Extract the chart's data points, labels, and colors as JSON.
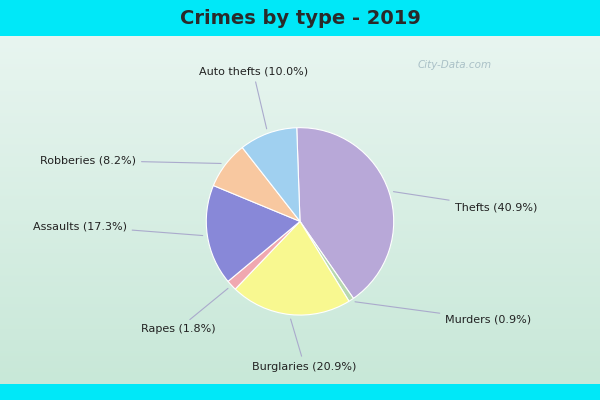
{
  "title": "Crimes by type - 2019",
  "slices": [
    {
      "label": "Thefts",
      "pct": 40.9,
      "color": "#b8a8d8"
    },
    {
      "label": "Murders",
      "pct": 0.9,
      "color": "#b8d8b0"
    },
    {
      "label": "Burglaries",
      "pct": 20.9,
      "color": "#f8f890"
    },
    {
      "label": "Rapes",
      "pct": 1.8,
      "color": "#f0a8b0"
    },
    {
      "label": "Assaults",
      "pct": 17.3,
      "color": "#8888d8"
    },
    {
      "label": "Robberies",
      "pct": 8.2,
      "color": "#f8c8a0"
    },
    {
      "label": "Auto thefts",
      "pct": 10.0,
      "color": "#a0d0f0"
    }
  ],
  "title_color": "#2a2a2a",
  "title_fontsize": 14,
  "title_bg": "#00e8f8",
  "chart_bg_top": "#e8f5f0",
  "chart_bg_bottom": "#c8e8d8",
  "border_color": "#00e8f8",
  "label_fontsize": 8,
  "label_color": "#222222",
  "line_color": "#aaaacc",
  "watermark": "City-Data.com",
  "watermark_color": "#a0b8c0"
}
